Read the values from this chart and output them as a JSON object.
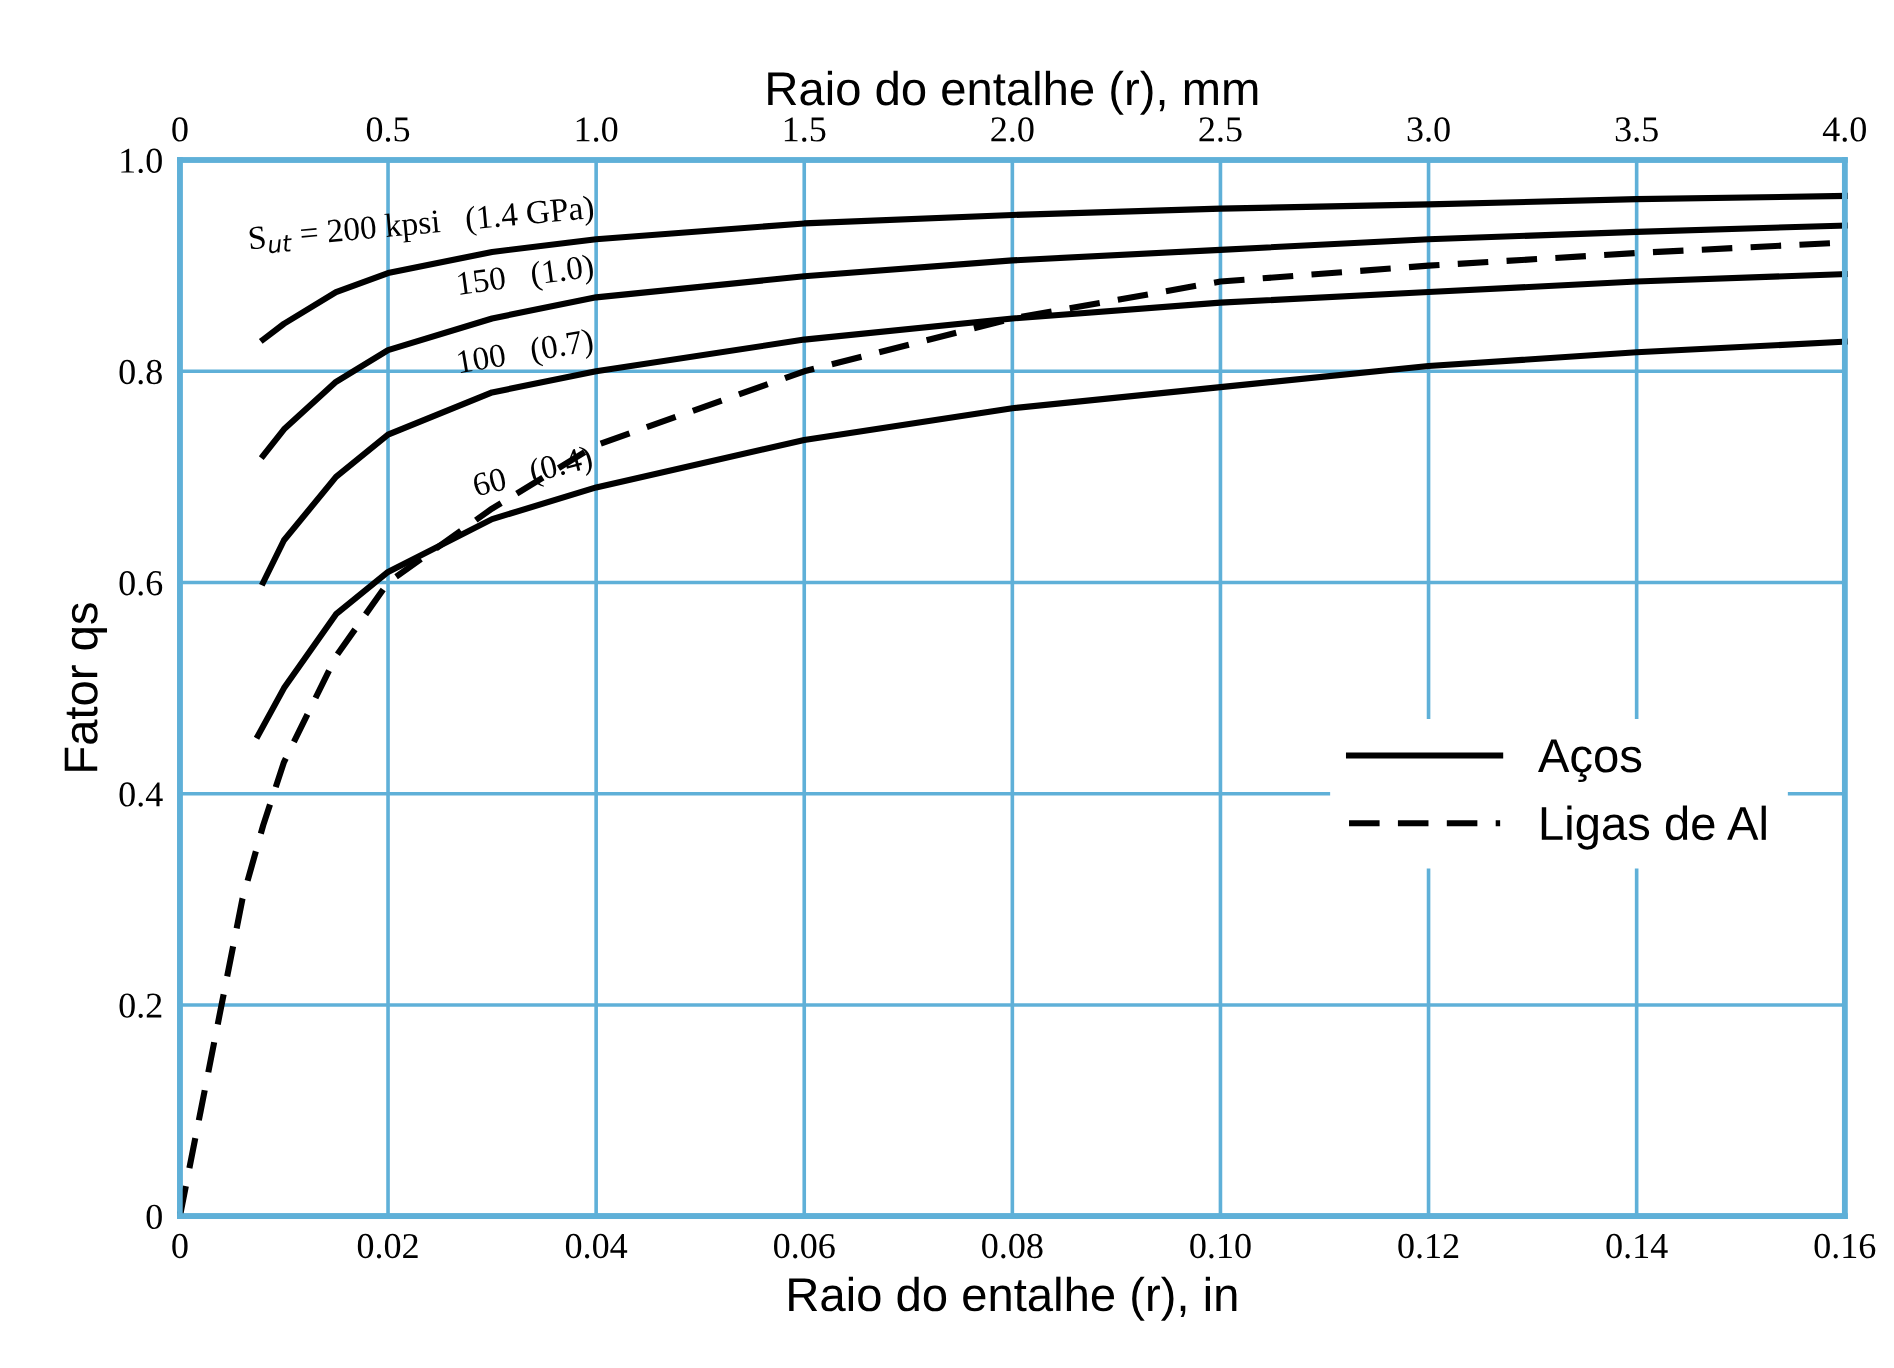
{
  "chart_data": {
    "type": "line",
    "xlabel": "Raio do entalhe (r), in",
    "ylabel": "Fator qs",
    "x2label": "Raio do entalhe (r), mm",
    "xlim": [
      0,
      0.16
    ],
    "xticks": [
      0,
      0.02,
      0.04,
      0.06,
      0.08,
      {
        "value": 0.1,
        "label": "0.10"
      },
      {
        "value": 0.12,
        "label": "0.12"
      },
      {
        "value": 0.14,
        "label": "0.14"
      },
      {
        "value": 0.16,
        "label": "0.16"
      }
    ],
    "x2lim": [
      0,
      4.0
    ],
    "x2ticks": [
      0,
      0.5,
      {
        "value": 1,
        "label": "1.0"
      },
      1.5,
      {
        "value": 2,
        "label": "2.0"
      },
      2.5,
      {
        "value": 3,
        "label": "3.0"
      },
      3.5,
      {
        "value": 4,
        "label": "4.0"
      }
    ],
    "ylim": [
      0,
      1.0
    ],
    "yticks": [
      0,
      0.2,
      0.4,
      0.6,
      0.8,
      {
        "value": 1,
        "label": "1.0"
      }
    ],
    "grid": true,
    "legend": "center right",
    "marker": "none",
    "series": [
      {
        "name": "Aços",
        "color": "#000000",
        "line_style": "solid",
        "x": [
          0.008,
          0.01,
          0.015,
          0.02,
          0.03,
          0.04,
          0.06,
          0.08,
          0.1,
          0.12,
          0.14,
          0.16
        ],
        "values": [
          0.83,
          0.845,
          0.875,
          0.893,
          0.913,
          0.925,
          0.94,
          0.948,
          0.954,
          0.958,
          0.963,
          0.966
        ]
      },
      {
        "color": "#000000",
        "line_style": "solid",
        "x": [
          0.008,
          0.01,
          0.015,
          0.02,
          0.03,
          0.04,
          0.06,
          0.08,
          0.1,
          0.12,
          0.14,
          0.16
        ],
        "values": [
          0.72,
          0.745,
          0.79,
          0.82,
          0.85,
          0.87,
          0.89,
          0.905,
          0.915,
          0.925,
          0.932,
          0.938
        ]
      },
      {
        "color": "#000000",
        "line_style": "solid",
        "x": [
          0.008,
          0.01,
          0.015,
          0.02,
          0.03,
          0.04,
          0.06,
          0.08,
          0.1,
          0.12,
          0.14,
          0.16
        ],
        "values": [
          0.6,
          0.64,
          0.7,
          0.74,
          0.78,
          0.8,
          0.83,
          0.85,
          0.865,
          0.875,
          0.885,
          0.892
        ]
      },
      {
        "color": "#000000",
        "line_style": "solid",
        "x": [
          0.0075,
          0.01,
          0.015,
          0.02,
          0.03,
          0.04,
          0.06,
          0.08,
          0.1,
          0.12,
          0.14,
          0.16
        ],
        "values": [
          0.455,
          0.5,
          0.57,
          0.61,
          0.66,
          0.69,
          0.735,
          0.765,
          0.785,
          0.805,
          0.818,
          0.828
        ]
      },
      {
        "name": "Ligas de Al",
        "color": "#000000",
        "line_style": "dashed",
        "x": [
          0,
          0.002,
          0.004,
          0.006,
          0.008,
          0.01,
          0.015,
          0.02,
          0.03,
          0.04,
          0.06,
          0.08,
          0.1,
          0.12,
          0.14,
          0.16
        ],
        "values": [
          0,
          0.1,
          0.2,
          0.3,
          0.37,
          0.43,
          0.53,
          0.6,
          0.67,
          0.73,
          0.8,
          0.85,
          0.885,
          0.9,
          0.912,
          0.922
        ]
      }
    ],
    "annotations": [
      "S$_{ut}$ = 200 kpsi   (1.4 GPa)",
      "150   (1.0)",
      "100   (0.7)",
      "60   (0.4)"
    ]
  }
}
